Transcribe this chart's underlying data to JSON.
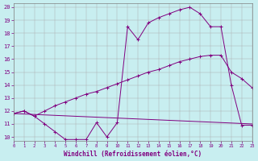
{
  "xlabel": "Windchill (Refroidissement éolien,°C)",
  "bg_color": "#c8eef0",
  "line_color": "#800080",
  "x_ticks": [
    0,
    1,
    2,
    3,
    4,
    5,
    6,
    7,
    8,
    9,
    10,
    11,
    12,
    13,
    14,
    15,
    16,
    17,
    18,
    19,
    20,
    21,
    22,
    23
  ],
  "y_ticks": [
    10,
    11,
    12,
    13,
    14,
    15,
    16,
    17,
    18,
    19,
    20
  ],
  "xlim": [
    0,
    23
  ],
  "ylim": [
    9.7,
    20.3
  ],
  "line1_x": [
    0,
    1,
    2,
    3,
    4,
    5,
    6,
    7,
    8,
    9,
    10,
    11,
    12,
    13,
    14,
    15,
    16,
    17,
    18,
    19,
    20,
    21,
    22,
    23
  ],
  "line1_y": [
    11.8,
    12.0,
    11.6,
    11.0,
    10.4,
    9.8,
    9.8,
    9.8,
    11.1,
    10.0,
    11.1,
    18.5,
    17.5,
    18.8,
    19.2,
    19.5,
    19.8,
    20.0,
    19.5,
    18.5,
    18.5,
    14.0,
    10.9,
    10.9
  ],
  "line2_x": [
    0,
    23
  ],
  "line2_y": [
    11.8,
    11.0
  ],
  "line3_x": [
    0,
    1,
    2,
    3,
    4,
    5,
    6,
    7,
    8,
    9,
    10,
    11,
    12,
    13,
    14,
    15,
    16,
    17,
    18,
    19,
    20,
    21,
    22,
    23
  ],
  "line3_y": [
    11.8,
    12.0,
    11.6,
    12.0,
    12.4,
    12.7,
    13.0,
    13.3,
    13.5,
    13.8,
    14.1,
    14.4,
    14.7,
    15.0,
    15.2,
    15.5,
    15.8,
    16.0,
    16.2,
    16.3,
    16.3,
    15.0,
    14.5,
    13.8
  ]
}
